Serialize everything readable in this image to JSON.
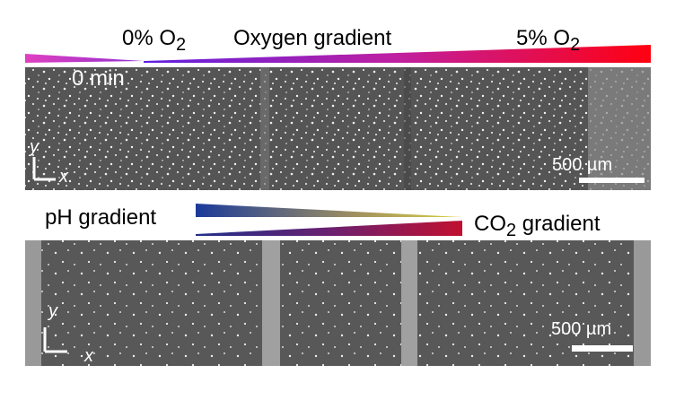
{
  "top_panel": {
    "left_label": {
      "text": "0% O",
      "sub": "2"
    },
    "center_label": "Oxygen gradient",
    "right_label": {
      "text": "5% O",
      "sub": "2"
    },
    "time_label": "0 min",
    "axis_y": "y",
    "axis_x": "x",
    "scale_bar": "500 µm"
  },
  "bottom_panel": {
    "left_label": "pH gradient",
    "right_label": {
      "text": "CO",
      "sub": "2",
      "rest": " gradient"
    },
    "axis_y": "y",
    "axis_x": "x",
    "scale_bar": "500 µm"
  }
}
